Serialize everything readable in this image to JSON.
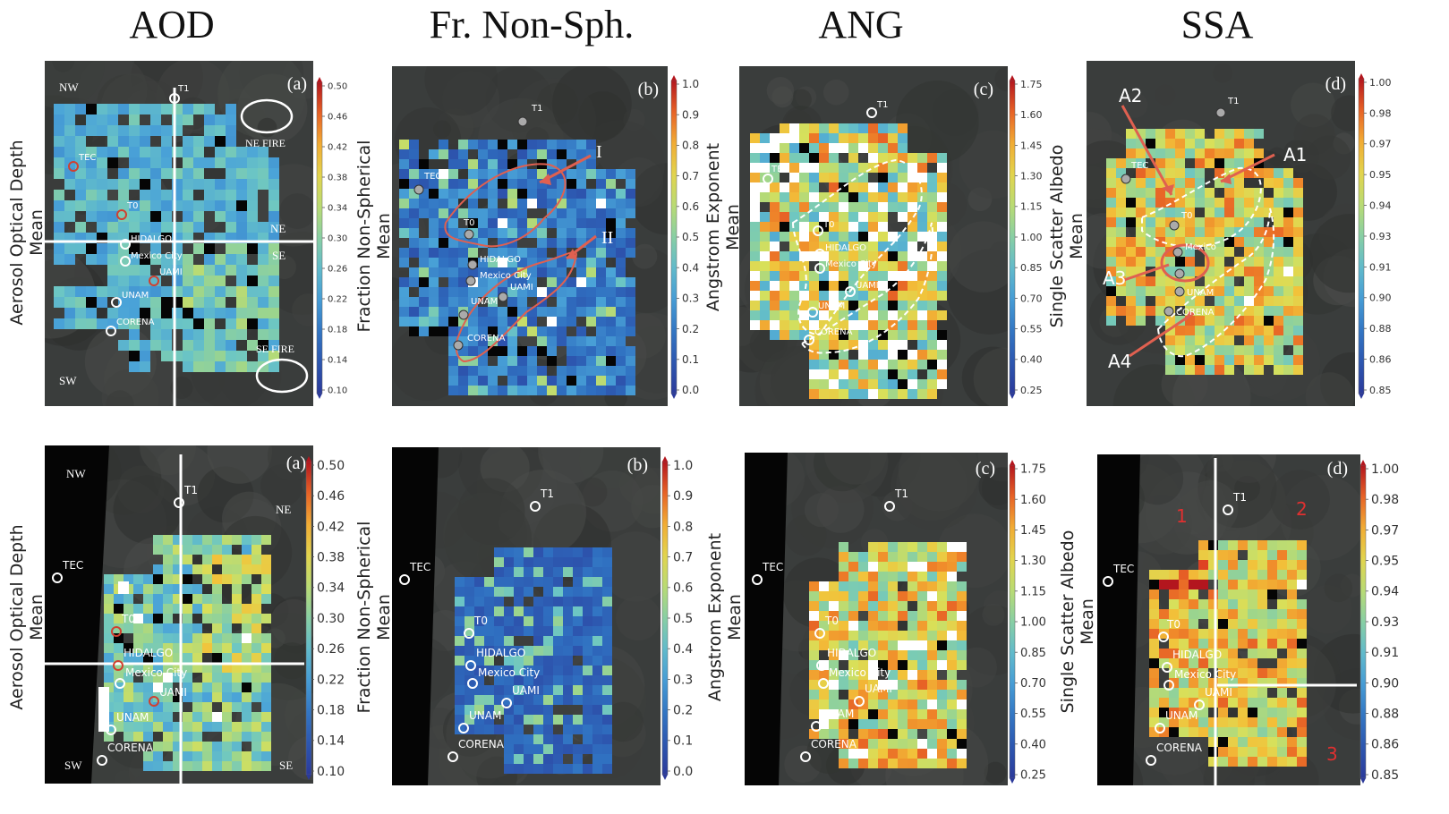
{
  "column_titles": [
    "AOD",
    "Fr. Non-Sph.",
    "ANG",
    "SSA"
  ],
  "variables": [
    {
      "name": "AOD",
      "ylabel_line1": "Aerosol Optical Depth",
      "ylabel_line2": "Mean",
      "colorbar_ticks": [
        "0.50",
        "0.46",
        "0.42",
        "0.38",
        "0.34",
        "0.30",
        "0.26",
        "0.22",
        "0.18",
        "0.14",
        "0.10"
      ],
      "panel_letter": "(a)"
    },
    {
      "name": "Fr. Non-Sph.",
      "ylabel_line1": "Fraction Non-Spherical",
      "ylabel_line2": "Mean",
      "colorbar_ticks": [
        "1.0",
        "0.9",
        "0.8",
        "0.7",
        "0.6",
        "0.5",
        "0.4",
        "0.3",
        "0.2",
        "0.1",
        "0.0"
      ],
      "panel_letter": "(b)"
    },
    {
      "name": "ANG",
      "ylabel_line1": "Angstrom Exponent",
      "ylabel_line2": "Mean",
      "colorbar_ticks": [
        "1.75",
        "1.60",
        "1.45",
        "1.30",
        "1.15",
        "1.00",
        "0.85",
        "0.70",
        "0.55",
        "0.40",
        "0.25"
      ],
      "panel_letter": "(c)"
    },
    {
      "name": "SSA",
      "ylabel_line1": "Single Scatter Albedo",
      "ylabel_line2": "Mean",
      "colorbar_ticks": [
        "1.00",
        "0.98",
        "0.97",
        "0.95",
        "0.94",
        "0.93",
        "0.91",
        "0.90",
        "0.88",
        "0.86",
        "0.85"
      ],
      "panel_letter": "(d)"
    }
  ],
  "stations": {
    "t1": "T1",
    "tec": "TEC",
    "t0": "T0",
    "hidalgo": "HIDALGO",
    "mexico_city": "Mexico City",
    "uami": "UAMI",
    "unam": "UNAM",
    "corena": "CORENA",
    "mexico_short": "Mexico"
  },
  "quadrants": {
    "nw": "NW",
    "ne": "NE",
    "se": "SE",
    "sw": "SW"
  },
  "fires": {
    "ne": "NE FIRE",
    "se": "SE FIRE"
  },
  "region_labels": {
    "I": "I",
    "II": "II",
    "A1": "A1",
    "A2": "A2",
    "A3": "A3",
    "A4": "A4",
    "q1": "1",
    "q2": "2",
    "q3": "3"
  },
  "colors": {
    "arrow": "#e06050",
    "cb_top": "#b2182b",
    "cb_mid": "#f0e442",
    "cb_low": "#2c7bb6",
    "cb_bottom": "#313695"
  }
}
